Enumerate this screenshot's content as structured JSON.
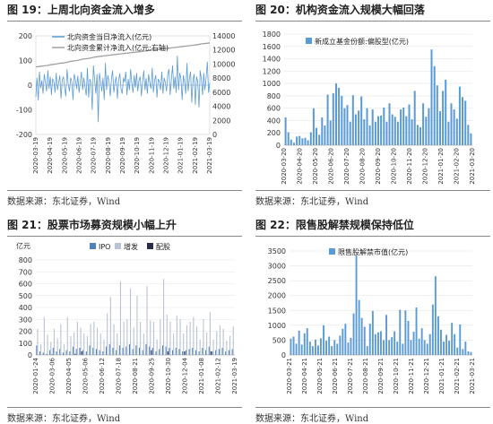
{
  "panels": [
    {
      "title": "图 19：上周北向资金流入增多",
      "source": "数据来源：东北证券，Wind",
      "chart_data": {
        "type": "line",
        "legend": [
          "北向资金当日净流入(亿元)",
          "北向资金累计净流入(亿元;右轴)"
        ],
        "legend_placement": "top-left",
        "series_colors": [
          "#5b9bd5",
          "#a0a0a0"
        ],
        "y_ticks": [
          "200",
          "100",
          "0",
          "-100",
          "-200"
        ],
        "y_range": [
          -200,
          200
        ],
        "y2_ticks": [
          "14000",
          "12000",
          "10000",
          "8000",
          "6000",
          "4000",
          "2000",
          "0"
        ],
        "y2_range": [
          0,
          14000
        ],
        "x_ticks": [
          "2020-03-19",
          "2020-04-19",
          "2020-05-19",
          "2020-06-19",
          "2020-07-19",
          "2020-08-19",
          "2020-09-19",
          "2020-10-19",
          "2020-11-19",
          "2020-12-19",
          "2021-01-19",
          "2021-02-19",
          "2021-03-19"
        ],
        "daily_inflow": [
          -48,
          30,
          -62,
          55,
          -12,
          20,
          -35,
          45,
          10,
          -25,
          60,
          -15,
          35,
          -40,
          25,
          15,
          -30,
          50,
          -20,
          10,
          40,
          -55,
          20,
          35,
          -10,
          -45,
          65,
          5,
          -25,
          30,
          15,
          -60,
          45,
          20,
          -15,
          38,
          -30,
          12,
          55,
          -20,
          30,
          -8,
          -42,
          70,
          -50,
          25,
          10,
          -100,
          80,
          20,
          -35,
          45,
          -150,
          50,
          15,
          -25,
          30,
          -60,
          90,
          -20,
          40,
          15,
          -45,
          25,
          60,
          -30,
          10,
          35,
          -55,
          20,
          48,
          -15,
          -35,
          30,
          12,
          55,
          -40,
          25,
          -20,
          65,
          10,
          -30,
          40,
          -10,
          50,
          -25,
          20,
          35,
          -45,
          15,
          60,
          -20,
          28,
          -35,
          45,
          10,
          -15,
          70,
          -30,
          20,
          40,
          -50,
          25,
          15,
          -20,
          55,
          -35,
          30,
          10,
          -25,
          45,
          65,
          -40,
          20,
          80,
          -15,
          35,
          -30,
          120,
          -20,
          50,
          25,
          -60,
          40,
          10,
          -35,
          90,
          -25,
          30,
          55,
          -70,
          20,
          45,
          -80,
          35,
          15,
          -90,
          60,
          25,
          -40,
          50,
          -20,
          30,
          95,
          -30,
          10
        ],
        "cumulative_inflow": [
          9600,
          9650,
          9700,
          9750,
          9800,
          9900,
          9950,
          10000,
          10100,
          10150,
          10200,
          10300,
          10400,
          10450,
          10500,
          10600,
          10700,
          10750,
          10800,
          10900,
          11000,
          11050,
          11100,
          11150,
          11200,
          11250,
          11300,
          11350,
          11400,
          11450,
          11500,
          11550,
          11600,
          11650,
          11700,
          11750,
          11800,
          11850,
          11900,
          11950,
          12000,
          12050,
          12100,
          12150,
          12200,
          12250,
          12300,
          12350,
          12400,
          12450,
          12500,
          12550,
          12600,
          12650,
          12700,
          12750,
          12850,
          12900,
          12950,
          13000
        ]
      }
    },
    {
      "title": "图 20：机构资金流入规模大幅回落",
      "source": "数据来源：东北证券，Wind",
      "chart_data": {
        "type": "bar",
        "legend": [
          "新成立基金份额:偏股型(亿元)"
        ],
        "legend_placement": "top-left",
        "series_colors": [
          "#5b9bd5"
        ],
        "y_ticks": [
          "1800",
          "1600",
          "1400",
          "1200",
          "1000",
          "800",
          "600",
          "400",
          "200",
          "0"
        ],
        "y_range": [
          0,
          1800
        ],
        "x_ticks": [
          "2020-03-20",
          "2020-04-20",
          "2020-05-20",
          "2020-06-20",
          "2020-07-20",
          "2020-08-20",
          "2020-09-20",
          "2020-10-20",
          "2020-11-20",
          "2020-12-20",
          "2021-01-20",
          "2021-02-20",
          "2021-03-20"
        ],
        "values": [
          450,
          210,
          90,
          40,
          140,
          150,
          110,
          120,
          80,
          210,
          600,
          280,
          170,
          450,
          320,
          820,
          400,
          840,
          1000,
          930,
          800,
          600,
          650,
          380,
          810,
          500,
          560,
          790,
          420,
          600,
          320,
          580,
          380,
          470,
          480,
          610,
          380,
          680,
          500,
          460,
          380,
          580,
          610,
          470,
          660,
          420,
          880,
          330,
          290,
          680,
          460,
          600,
          1550,
          1280,
          970,
          550,
          880,
          1060,
          380,
          680,
          580,
          430,
          950,
          780,
          720,
          330,
          190
        ],
        "bar_highlights": "no"
      }
    },
    {
      "title": "图 21：股票市场募资规模小幅上升",
      "source": "数据来源：东北证券，Wind",
      "chart_data": {
        "type": "bar",
        "ylabel": "亿元",
        "legend": [
          "IPO",
          "增发",
          "配股"
        ],
        "legend_placement": "top",
        "series_colors": [
          "#4f81bd",
          "#b9c3d3",
          "#2a2a4a"
        ],
        "y_ticks": [
          "800",
          "700",
          "600",
          "500",
          "400",
          "300",
          "200",
          "100",
          "0"
        ],
        "y_range": [
          0,
          800
        ],
        "x_ticks": [
          "2020-01-24",
          "2020-03-06",
          "2020-04-05",
          "2020-05-06",
          "2020-06-12",
          "2020-07-18",
          "2020-08-21",
          "2020-09-25",
          "2020-10-30",
          "2020-12-04",
          "2021-01-08",
          "2021-02-12",
          "2021-03-19"
        ],
        "ipo": [
          80,
          30,
          20,
          10,
          40,
          60,
          30,
          50,
          20,
          40,
          30,
          70,
          50,
          60,
          40,
          30,
          80,
          60,
          50,
          40,
          30,
          70,
          90,
          60,
          40,
          80,
          60,
          70,
          90,
          50,
          80,
          60,
          40,
          90,
          70,
          60,
          30,
          50,
          80,
          70,
          60,
          40,
          60,
          50,
          30,
          40,
          50,
          60,
          40,
          30,
          60,
          40,
          70,
          30,
          40,
          50,
          60,
          30,
          40,
          50
        ],
        "zengfa": [
          220,
          90,
          320,
          170,
          110,
          220,
          140,
          260,
          90,
          320,
          160,
          190,
          280,
          230,
          180,
          160,
          260,
          280,
          230,
          180,
          130,
          350,
          490,
          260,
          180,
          620,
          280,
          300,
          560,
          230,
          500,
          280,
          180,
          580,
          290,
          280,
          130,
          300,
          640,
          340,
          280,
          180,
          330,
          300,
          180,
          250,
          280,
          320,
          240,
          130,
          300,
          190,
          360,
          130,
          200,
          250,
          220,
          120,
          160,
          240
        ],
        "peigu": [
          0,
          0,
          0,
          0,
          5,
          0,
          0,
          0,
          0,
          0,
          0,
          10,
          0,
          30,
          0,
          0,
          0,
          0,
          0,
          0,
          0,
          0,
          0,
          0,
          0,
          0,
          0,
          0,
          0,
          0,
          0,
          0,
          0,
          0,
          40,
          0,
          0,
          0,
          0,
          30,
          0,
          0,
          0,
          0,
          30,
          0,
          0,
          0,
          0,
          0,
          0,
          0,
          30,
          0,
          0,
          0,
          0,
          0,
          0,
          0
        ]
      }
    },
    {
      "title": "图 22：限售股解禁规模保持低位",
      "source": "数据来源：东北证券，Wind",
      "chart_data": {
        "type": "bar",
        "legend": [
          "限售股解禁市值(亿元)"
        ],
        "legend_placement": "top-left",
        "series_colors": [
          "#5b9bd5"
        ],
        "y_ticks": [
          "3500",
          "3000",
          "2500",
          "2000",
          "1500",
          "1000",
          "500",
          "0"
        ],
        "y_range": [
          0,
          3500
        ],
        "x_ticks": [
          "2020-03-21",
          "2020-04-21",
          "2020-05-21",
          "2020-06-21",
          "2020-07-21",
          "2020-08-21",
          "2020-09-21",
          "2020-10-21",
          "2020-11-21",
          "2020-12-21",
          "2021-01-21",
          "2021-02-21",
          "2021-03-21"
        ],
        "values": [
          550,
          620,
          380,
          820,
          350,
          730,
          900,
          450,
          300,
          520,
          320,
          560,
          1000,
          480,
          620,
          300,
          500,
          380,
          650,
          880,
          1050,
          420,
          580,
          1400,
          3350,
          1850,
          1250,
          950,
          300,
          1050,
          1480,
          700,
          760,
          800,
          500,
          1350,
          500,
          600,
          800,
          450,
          1520,
          380,
          1500,
          1150,
          500,
          780,
          1600,
          550,
          900,
          500,
          380,
          700,
          1700,
          2650,
          1300,
          850,
          450,
          680,
          480,
          1080,
          700,
          250,
          1030,
          200,
          450,
          120,
          100
        ]
      }
    }
  ]
}
